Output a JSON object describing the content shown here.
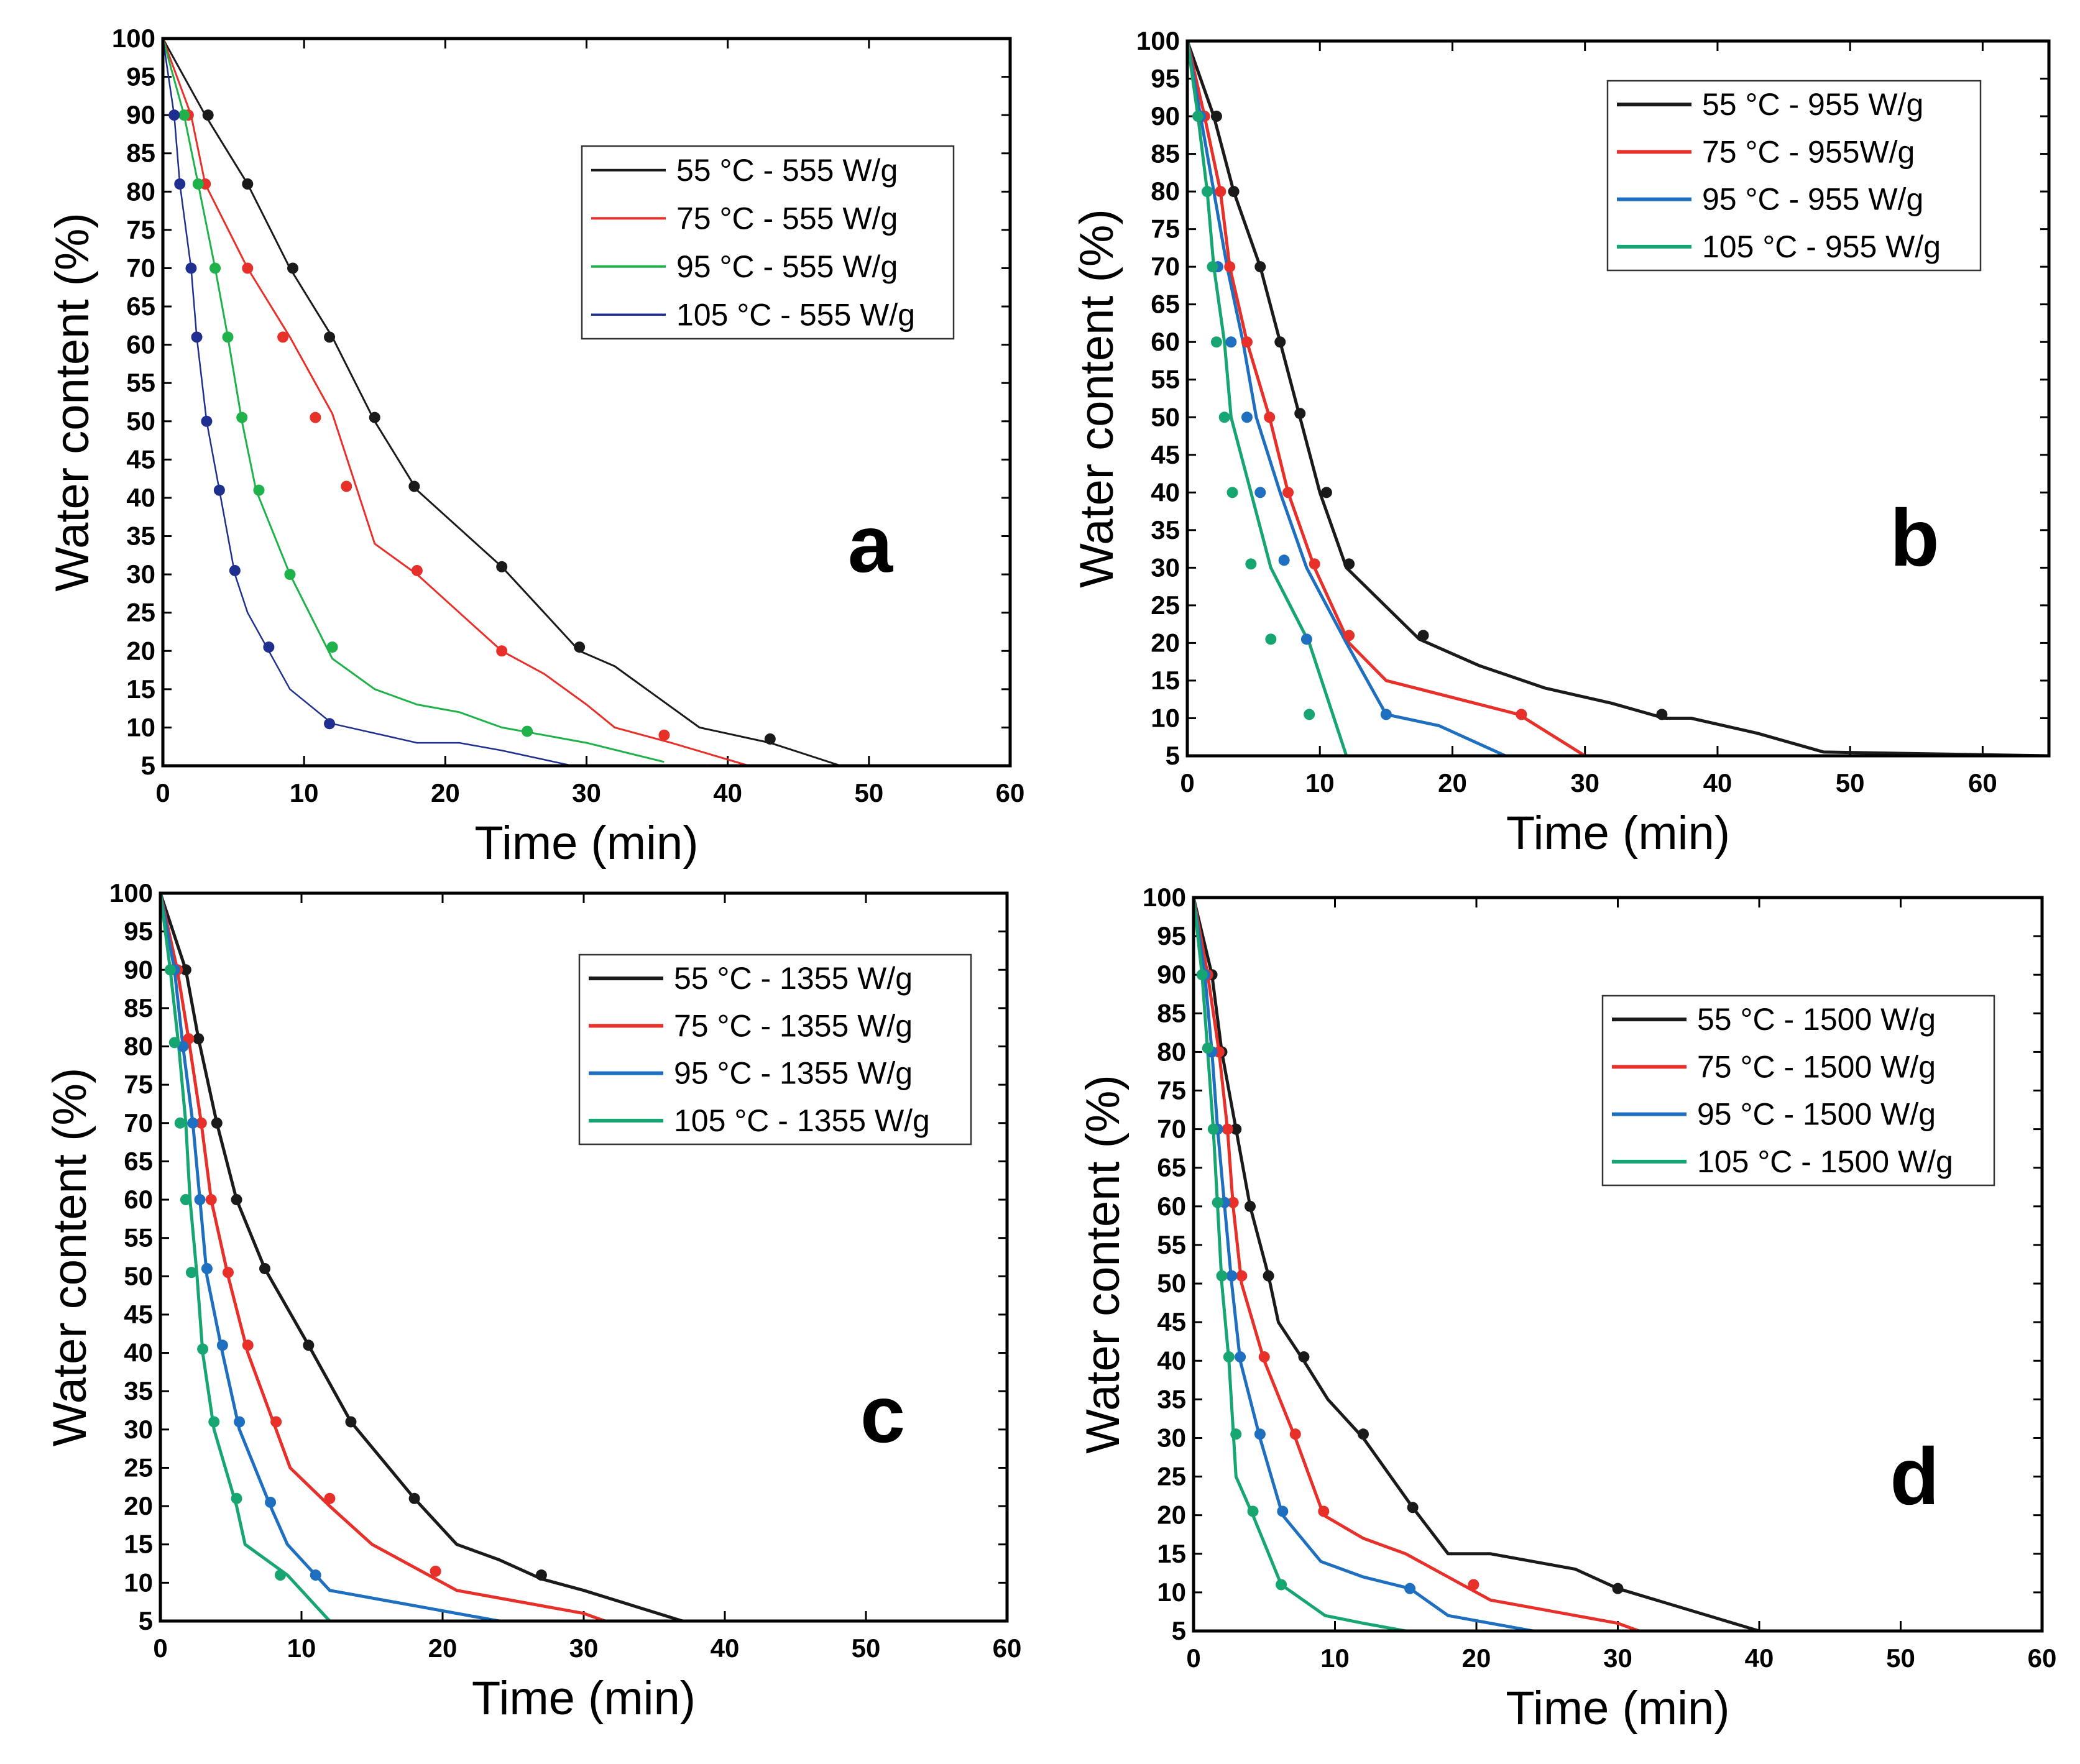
{
  "colors": {
    "black": "#1a1a1a",
    "red": "#e8302a",
    "green": "#1fb24a",
    "navy": "#1f2f8f",
    "blue": "#1f6fc0",
    "teal": "#17a572"
  },
  "chart_data": [
    {
      "type": "line",
      "panel": "a",
      "xlabel": "Time (min)",
      "ylabel": "Water content (%)",
      "xlim": [
        0,
        60
      ],
      "ylim": [
        5,
        100
      ],
      "xticks": [
        0,
        10,
        20,
        30,
        40,
        50,
        60
      ],
      "yticks": [
        5,
        10,
        15,
        20,
        25,
        30,
        35,
        40,
        45,
        50,
        55,
        60,
        65,
        70,
        75,
        80,
        85,
        90,
        95,
        100
      ],
      "legend_position": "top-right",
      "series": [
        {
          "name": "55 °C - 555 W/g",
          "color": "black",
          "line_width": 3,
          "x": [
            0,
            3,
            6,
            9,
            12,
            15,
            18,
            21,
            24,
            27,
            29.5,
            32,
            35,
            38,
            43,
            48
          ],
          "y": [
            100,
            90,
            81,
            70,
            61,
            50,
            41,
            36,
            31,
            25,
            20,
            18,
            14,
            10,
            8,
            5
          ],
          "marker_x": [
            3.2,
            6,
            9.2,
            11.8,
            15,
            17.8,
            24,
            29.5,
            43
          ],
          "marker_y": [
            90,
            81,
            70,
            61,
            50.5,
            41.5,
            31,
            20.5,
            8.5
          ]
        },
        {
          "name": "75  °C - 555 W/g",
          "color": "red",
          "line_width": 3,
          "x": [
            0,
            2,
            3,
            6,
            9,
            12,
            15,
            18,
            21,
            24,
            27,
            30,
            32,
            36,
            41.5
          ],
          "y": [
            100,
            90,
            81,
            70,
            61,
            51,
            34,
            30,
            25,
            20,
            17,
            13,
            10,
            8,
            5
          ],
          "marker_x": [
            1.8,
            3,
            6,
            8.5,
            10.8,
            13,
            18,
            24,
            35.5
          ],
          "marker_y": [
            90,
            81,
            70,
            61,
            50.5,
            41.5,
            30.5,
            20,
            9
          ]
        },
        {
          "name": "95  °C - 555 W/g",
          "color": "green",
          "line_width": 3,
          "x": [
            0,
            1.5,
            2.5,
            3.7,
            4.6,
            5.6,
            6.6,
            9,
            12,
            15,
            18,
            21,
            24,
            27,
            30,
            35.5
          ],
          "y": [
            100,
            90,
            81,
            70,
            61,
            50,
            41,
            30,
            19,
            15,
            13,
            12,
            10,
            9,
            8,
            5.5
          ],
          "marker_x": [
            1.5,
            2.5,
            3.7,
            4.6,
            5.6,
            6.8,
            9,
            12,
            25.8
          ],
          "marker_y": [
            90,
            81,
            70,
            61,
            50.5,
            41,
            30,
            20.5,
            9.5
          ]
        },
        {
          "name": "105 °C - 555 W/g",
          "color": "navy",
          "line_width": 2.5,
          "x": [
            0,
            0.8,
            1.2,
            2,
            2.4,
            3.1,
            4,
            5.1,
            6,
            7.5,
            9,
            12,
            18,
            21,
            24,
            29
          ],
          "y": [
            100,
            90,
            81,
            70,
            61,
            50,
            41,
            30,
            25,
            20,
            15,
            10.5,
            8,
            8,
            7,
            5
          ],
          "marker_x": [
            0.8,
            1.2,
            2,
            2.4,
            3.1,
            4,
            5.1,
            7.5,
            11.8
          ],
          "marker_y": [
            90,
            81,
            70,
            61,
            50,
            41,
            30.5,
            20.5,
            10.5
          ]
        }
      ]
    },
    {
      "type": "line",
      "panel": "b",
      "xlabel": "Time (min)",
      "ylabel": "Water content (%)",
      "xlim": [
        0,
        65
      ],
      "ylim": [
        5,
        100
      ],
      "xticks": [
        0,
        10,
        20,
        30,
        40,
        50,
        60
      ],
      "yticks": [
        5,
        10,
        15,
        20,
        25,
        30,
        35,
        40,
        45,
        50,
        55,
        60,
        65,
        70,
        75,
        80,
        85,
        90,
        95,
        100
      ],
      "legend_position": "top-right",
      "series": [
        {
          "name": "55 °C - 955 W/g",
          "color": "black",
          "line_width": 5,
          "x": [
            0,
            2,
            3.5,
            5.5,
            7,
            8.5,
            10,
            12,
            17.5,
            22,
            27,
            32,
            36,
            38,
            43,
            48,
            65
          ],
          "y": [
            100,
            90,
            80,
            70,
            60,
            50,
            40,
            30,
            20.5,
            17,
            14,
            12,
            10,
            10,
            8,
            5.5,
            5
          ],
          "marker_x": [
            2.2,
            3.5,
            5.5,
            7,
            8.5,
            10.5,
            12.2,
            17.8,
            35.8
          ],
          "marker_y": [
            90,
            80,
            70,
            60,
            50.5,
            40,
            30.5,
            21,
            10.5
          ]
        },
        {
          "name": "75  °C - 955W/g",
          "color": "red",
          "line_width": 5,
          "x": [
            0,
            1.3,
            2.5,
            3.2,
            4.5,
            6.2,
            7.6,
            9.6,
            12.2,
            15,
            25,
            30
          ],
          "y": [
            100,
            90,
            80,
            70,
            60,
            50,
            40,
            30,
            20,
            15,
            10.5,
            5
          ],
          "marker_x": [
            1.3,
            2.5,
            3.2,
            4.5,
            6.2,
            7.6,
            9.6,
            12.2,
            25.2
          ],
          "marker_y": [
            90,
            80,
            70,
            60,
            50,
            40,
            30.5,
            21,
            10.5
          ]
        },
        {
          "name": "95  °C - 955 W/g",
          "color": "blue",
          "line_width": 5,
          "x": [
            0,
            1,
            2,
            3,
            4.2,
            5.2,
            7,
            9,
            12,
            15,
            19,
            24
          ],
          "y": [
            100,
            90,
            80,
            70,
            60,
            50,
            40,
            30,
            20,
            10.5,
            9,
            5
          ],
          "marker_x": [
            1,
            2.3,
            3.3,
            4.5,
            5.5,
            7.3,
            9,
            15
          ],
          "marker_y": [
            90,
            70,
            60,
            50,
            40,
            31,
            20.5,
            10.5
          ]
        },
        {
          "name": "105 °C - 955 W/g",
          "color": "teal",
          "line_width": 5,
          "x": [
            0,
            0.8,
            1.5,
            2,
            2.8,
            3.3,
            4.8,
            6.3,
            9.2,
            12,
            65
          ],
          "y": [
            100,
            90,
            80,
            70,
            60,
            50,
            40,
            30,
            20,
            5,
            5
          ],
          "marker_x": [
            0.8,
            1.5,
            1.9,
            2.2,
            2.8,
            3.4,
            4.8,
            6.3,
            9.2
          ],
          "marker_y": [
            90,
            80,
            70,
            60,
            50,
            40,
            30.5,
            20.5,
            10.5
          ]
        }
      ]
    },
    {
      "type": "line",
      "panel": "c",
      "xlabel": "Time (min)",
      "ylabel": "Water content (%)",
      "xlim": [
        0,
        60
      ],
      "ylim": [
        5,
        100
      ],
      "xticks": [
        0,
        10,
        20,
        30,
        40,
        50,
        60
      ],
      "yticks": [
        5,
        10,
        15,
        20,
        25,
        30,
        35,
        40,
        45,
        50,
        55,
        60,
        65,
        70,
        75,
        80,
        85,
        90,
        95,
        100
      ],
      "legend_position": "top-right",
      "series": [
        {
          "name": "55 °C - 1355 W/g",
          "color": "black",
          "line_width": 5,
          "x": [
            0,
            1.8,
            2.7,
            4,
            5.4,
            7.4,
            10.5,
            13.5,
            18,
            21,
            24,
            27,
            30,
            37,
            60
          ],
          "y": [
            100,
            90,
            81,
            70,
            60,
            51,
            41,
            31,
            21,
            15,
            13,
            10.5,
            9,
            5,
            5
          ],
          "marker_x": [
            1.8,
            2.7,
            4,
            5.4,
            7.4,
            10.5,
            13.5,
            18,
            27
          ],
          "marker_y": [
            90,
            81,
            70,
            60,
            51,
            41,
            31,
            21,
            11
          ]
        },
        {
          "name": "75  °C - 1355 W/g",
          "color": "red",
          "line_width": 5,
          "x": [
            0,
            1.2,
            2,
            2.9,
            3.6,
            4.8,
            6.2,
            8.2,
            9.2,
            12,
            15,
            21,
            24,
            30,
            31.5
          ],
          "y": [
            100,
            90,
            81,
            70,
            60,
            50,
            40,
            30,
            25,
            20,
            15,
            9,
            8,
            6,
            5
          ],
          "marker_x": [
            1.2,
            2,
            2.9,
            3.6,
            4.8,
            6.2,
            8.2,
            12,
            19.5
          ],
          "marker_y": [
            90,
            81,
            70,
            60,
            50.5,
            41,
            31,
            21,
            11.5
          ]
        },
        {
          "name": "95  °C - 1355 W/g",
          "color": "blue",
          "line_width": 5,
          "x": [
            0,
            1,
            1.6,
            2.3,
            2.8,
            3.3,
            4.4,
            5.6,
            7.8,
            9,
            12,
            18,
            24
          ],
          "y": [
            100,
            90,
            80,
            70,
            60,
            50,
            40,
            30,
            20,
            15,
            9,
            7,
            5
          ],
          "marker_x": [
            1,
            1.6,
            2.3,
            2.8,
            3.3,
            4.4,
            5.6,
            7.8,
            11
          ],
          "marker_y": [
            90,
            80,
            70,
            60,
            51,
            41,
            31,
            20.5,
            11
          ]
        },
        {
          "name": "105 °C - 1355 W/g",
          "color": "teal",
          "line_width": 5,
          "x": [
            0,
            0.7,
            1.3,
            1.8,
            2.1,
            2.6,
            3,
            3.8,
            5.4,
            6,
            9,
            12,
            60
          ],
          "y": [
            100,
            90,
            80,
            70,
            60,
            50,
            40,
            30,
            20,
            15,
            11,
            5,
            5
          ],
          "marker_x": [
            0.7,
            1,
            1.4,
            1.8,
            2.2,
            3,
            3.8,
            5.4,
            8.5
          ],
          "marker_y": [
            90,
            80.5,
            70,
            60,
            50.5,
            40.5,
            31,
            21,
            11
          ]
        }
      ]
    },
    {
      "type": "line",
      "panel": "d",
      "xlabel": "Time (min)",
      "ylabel": "Water content (%)",
      "xlim": [
        0,
        60
      ],
      "ylim": [
        5,
        100
      ],
      "xticks": [
        0,
        10,
        20,
        30,
        40,
        50,
        60
      ],
      "yticks": [
        5,
        10,
        15,
        20,
        25,
        30,
        35,
        40,
        45,
        50,
        55,
        60,
        65,
        70,
        75,
        80,
        85,
        90,
        95,
        100
      ],
      "legend_position": "top-right",
      "series": [
        {
          "name": "55 °C - 1500 W/g",
          "color": "black",
          "line_width": 5,
          "x": [
            0,
            1.3,
            2,
            3,
            4,
            5.3,
            6,
            7.8,
            9.5,
            12,
            15.5,
            18,
            21,
            24,
            27,
            30,
            40,
            60
          ],
          "y": [
            100,
            90,
            80,
            70,
            60,
            51,
            45,
            40,
            35,
            30,
            21,
            15,
            15,
            14,
            13,
            10.5,
            5,
            5
          ],
          "marker_x": [
            1.3,
            2,
            3,
            4,
            5.3,
            7.8,
            12,
            15.5,
            30
          ],
          "marker_y": [
            90,
            80,
            70,
            60,
            51,
            40.5,
            30.5,
            21,
            10.5
          ]
        },
        {
          "name": "75  °C - 1500 W/g",
          "color": "red",
          "line_width": 5,
          "x": [
            0,
            1,
            1.8,
            2.4,
            2.8,
            3.4,
            5,
            7.2,
            9.2,
            12,
            15,
            18,
            21,
            24,
            30,
            31.5
          ],
          "y": [
            100,
            90,
            80,
            70,
            60,
            50,
            40,
            30,
            20,
            17,
            15,
            12,
            9,
            8,
            6,
            5
          ],
          "marker_x": [
            1,
            1.8,
            2.4,
            2.8,
            3.4,
            5,
            7.2,
            9.2,
            19.8
          ],
          "marker_y": [
            90,
            80,
            70,
            60.5,
            51,
            40.5,
            30.5,
            20.5,
            11
          ]
        },
        {
          "name": "95  °C - 1500 W/g",
          "color": "blue",
          "line_width": 5,
          "x": [
            0,
            0.8,
            1.3,
            1.7,
            2.2,
            2.7,
            3.3,
            4.7,
            6.3,
            9,
            12,
            15.3,
            18,
            24
          ],
          "y": [
            100,
            90,
            80,
            70,
            60,
            50,
            40,
            30,
            20,
            14,
            12,
            10.5,
            7,
            5
          ],
          "marker_x": [
            0.8,
            1.3,
            1.7,
            2.2,
            2.7,
            3.3,
            4.7,
            6.3,
            15.3
          ],
          "marker_y": [
            90,
            80,
            70,
            60.5,
            51,
            40.5,
            30.5,
            20.5,
            10.5
          ]
        },
        {
          "name": "105 °C - 1500 W/g",
          "color": "teal",
          "line_width": 5,
          "x": [
            0,
            0.6,
            1,
            1.4,
            1.7,
            2,
            2.5,
            3,
            4.2,
            6.2,
            9.3,
            12,
            15,
            60
          ],
          "y": [
            100,
            90,
            80,
            70,
            60,
            50,
            40,
            25,
            20,
            11,
            7,
            6,
            5,
            5
          ],
          "marker_x": [
            0.6,
            1,
            1.4,
            1.7,
            2,
            2.5,
            3,
            4.2,
            6.2
          ],
          "marker_y": [
            90,
            80.5,
            70,
            60.5,
            51,
            40.5,
            30.5,
            20.5,
            11
          ]
        }
      ]
    }
  ]
}
